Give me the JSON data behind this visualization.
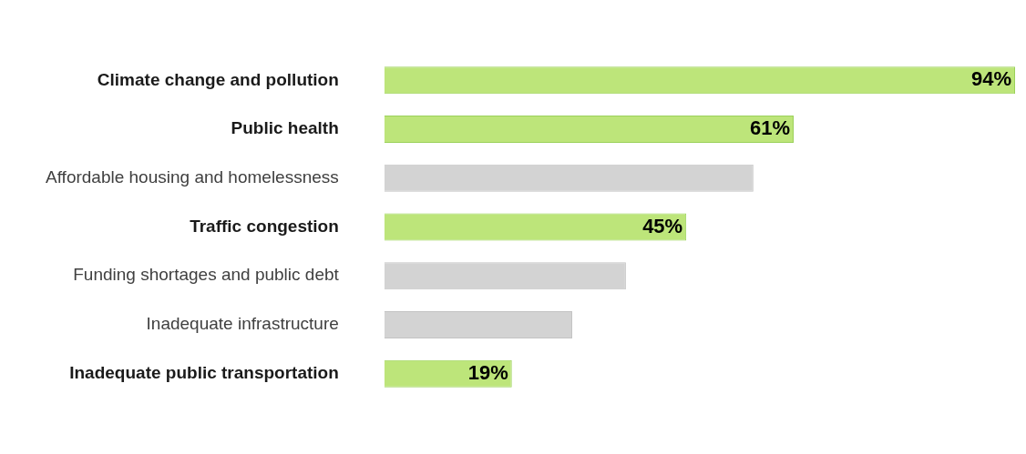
{
  "chart_data": {
    "type": "bar",
    "orientation": "horizontal",
    "categories": [
      "Climate change and pollution",
      "Public health",
      "Affordable housing and homelessness",
      "Traffic congestion",
      "Funding shortages and public debt",
      "Inadequate infrastructure",
      "Inadequate public transportation"
    ],
    "values": [
      94,
      61,
      55,
      45,
      36,
      28,
      19
    ],
    "colors": [
      "#bde57a",
      "#bde57a",
      "#d3d3d3",
      "#bde57a",
      "#d3d3d3",
      "#d3d3d3",
      "#bde57a"
    ],
    "value_labels": [
      "94%",
      "61%",
      null,
      "45%",
      null,
      null,
      "19%"
    ],
    "grid": false,
    "legend": false
  }
}
